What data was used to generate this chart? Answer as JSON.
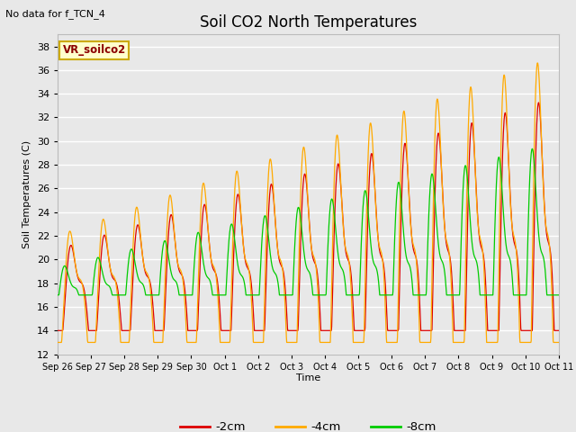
{
  "title": "Soil CO2 North Temperatures",
  "ylabel": "Soil Temperatures (C)",
  "xlabel": "Time",
  "top_left_note": "No data for f_TCN_4",
  "legend_box_label": "VR_soilco2",
  "ylim": [
    12,
    39
  ],
  "yticks": [
    12,
    14,
    16,
    18,
    20,
    22,
    24,
    26,
    28,
    30,
    32,
    34,
    36,
    38
  ],
  "x_tick_labels": [
    "Sep 26",
    "Sep 27",
    "Sep 28",
    "Sep 29",
    "Sep 30",
    "Oct 1",
    "Oct 2",
    "Oct 3",
    "Oct 4",
    "Oct 5",
    "Oct 6",
    "Oct 7",
    "Oct 8",
    "Oct 9",
    "Oct 10",
    "Oct 11"
  ],
  "color_2cm": "#dd0000",
  "color_4cm": "#ffaa00",
  "color_8cm": "#00cc00",
  "legend_labels": [
    "-2cm",
    "-4cm",
    "-8cm"
  ],
  "bg_color": "#e8e8e8",
  "plot_bg_color": "#e8e8e8",
  "figsize": [
    6.4,
    4.8
  ],
  "dpi": 100
}
